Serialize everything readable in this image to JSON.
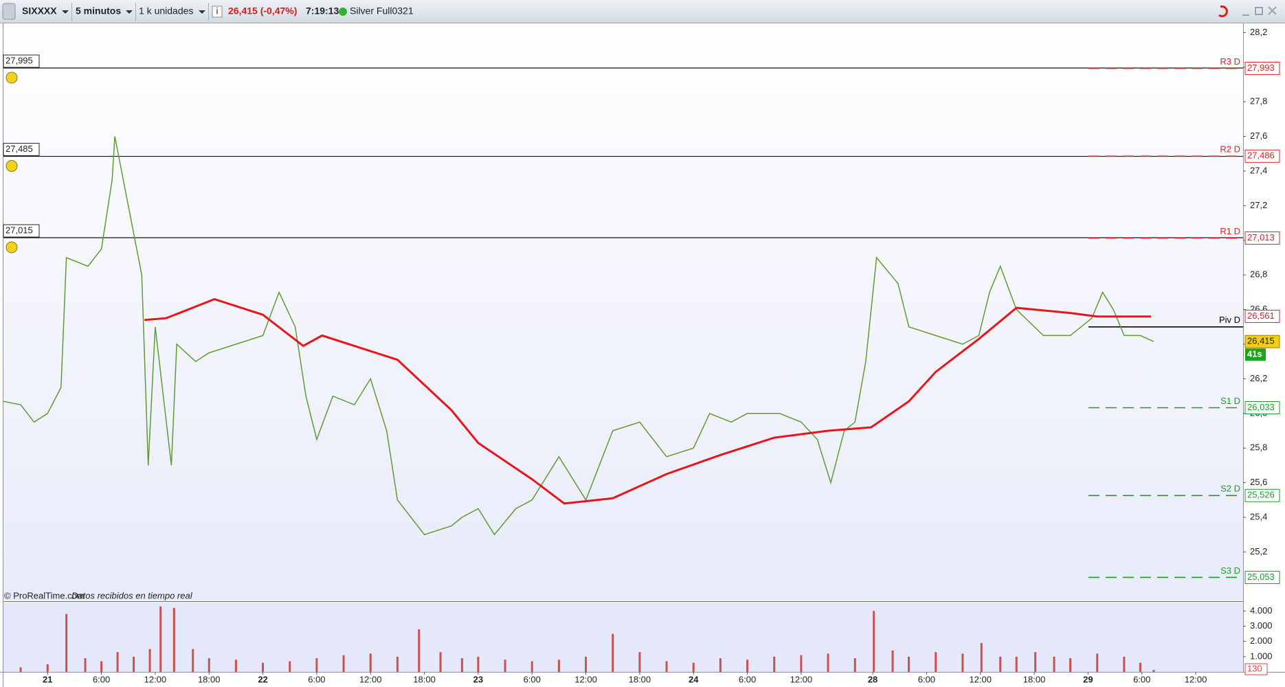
{
  "toolbar": {
    "symbol": "SIXXXX",
    "period": "5 minutos",
    "units": "1 k unidades",
    "quote": "26,415 (-0,47%)",
    "time": "7:19:13",
    "feed": "Silver Full0321"
  },
  "footer": {
    "source": "© ProRealTime.com",
    "status": "Datos recibidos en tiempo real"
  },
  "chart_data": [
    {
      "type": "line",
      "xlim": [
        -0.82,
        22.21
      ],
      "ylim": [
        24.92,
        28.257
      ],
      "xticks": [
        {
          "value": 0,
          "label": "21"
        },
        {
          "value": 1,
          "label": "6:00"
        },
        {
          "value": 2,
          "label": "12:00"
        },
        {
          "value": 3,
          "label": "18:00"
        },
        {
          "value": 4,
          "label": "22"
        },
        {
          "value": 5,
          "label": "6:00"
        },
        {
          "value": 6,
          "label": "12:00"
        },
        {
          "value": 7,
          "label": "18:00"
        },
        {
          "value": 8,
          "label": "23"
        },
        {
          "value": 9,
          "label": "6:00"
        },
        {
          "value": 10,
          "label": "12:00"
        },
        {
          "value": 11,
          "label": "18:00"
        },
        {
          "value": 12,
          "label": "24"
        },
        {
          "value": 13,
          "label": "6:00"
        },
        {
          "value": 14,
          "label": "12:00"
        },
        {
          "value": 15.33,
          "label": "28"
        },
        {
          "value": 16.33,
          "label": "6:00"
        },
        {
          "value": 17.33,
          "label": "12:00"
        },
        {
          "value": 18.33,
          "label": "18:00"
        },
        {
          "value": 19.33,
          "label": "29"
        },
        {
          "value": 20.33,
          "label": "6:00"
        },
        {
          "value": 21.33,
          "label": "12:00"
        }
      ],
      "yticks": [
        {
          "value": 25.2,
          "label": "25,2"
        },
        {
          "value": 25.4,
          "label": "25,4"
        },
        {
          "value": 25.6,
          "label": "25,6"
        },
        {
          "value": 25.8,
          "label": "25,8"
        },
        {
          "value": 26.0,
          "label": "26,0"
        },
        {
          "value": 26.2,
          "label": "26,2"
        },
        {
          "value": 26.4,
          "label": "26,4"
        },
        {
          "value": 26.6,
          "label": "26,6"
        },
        {
          "value": 26.8,
          "label": "26,8"
        },
        {
          "value": 27.0,
          "label": "27,0"
        },
        {
          "value": 27.2,
          "label": "27,2"
        },
        {
          "value": 27.4,
          "label": "27,4"
        },
        {
          "value": 27.6,
          "label": "27,6"
        },
        {
          "value": 27.8,
          "label": "27,8"
        },
        {
          "value": 28.0,
          "label": "28,0"
        },
        {
          "value": 28.2,
          "label": "28,2"
        }
      ],
      "series": [
        {
          "color": "#5f9a35",
          "x": [
            -0.82,
            -0.5,
            -0.25,
            0,
            0.25,
            0.35,
            0.75,
            1,
            1.2,
            1.25,
            1.5,
            1.75,
            1.87,
            2,
            2.3,
            2.4,
            2.75,
            3,
            3.5,
            4,
            4.3,
            4.6,
            4.8,
            5,
            5.3,
            5.7,
            6,
            6.3,
            6.5,
            7,
            7.5,
            7.7,
            8,
            8.3,
            8.7,
            9,
            9.5,
            10,
            10.5,
            11,
            11.5,
            12,
            12.3,
            12.7,
            13,
            13.6,
            14,
            14.3,
            14.55,
            14.8,
            15,
            15.2,
            15.4,
            15.8,
            16,
            16.5,
            17,
            17.3,
            17.5,
            17.7,
            18,
            18.5,
            19,
            19.4,
            19.6,
            19.8,
            20,
            20.3,
            20.55
          ],
          "values": [
            26.07,
            26.05,
            25.95,
            26.0,
            26.15,
            26.9,
            26.85,
            26.95,
            27.35,
            27.6,
            27.2,
            26.8,
            25.7,
            26.5,
            25.7,
            26.4,
            26.3,
            26.35,
            26.4,
            26.45,
            26.7,
            26.5,
            26.1,
            25.85,
            26.1,
            26.05,
            26.2,
            25.9,
            25.5,
            25.3,
            25.35,
            25.4,
            25.45,
            25.3,
            25.45,
            25.5,
            25.75,
            25.5,
            25.9,
            25.95,
            25.75,
            25.8,
            26.0,
            25.95,
            26.0,
            26.0,
            25.95,
            25.85,
            25.6,
            25.9,
            25.95,
            26.3,
            26.9,
            26.75,
            26.5,
            26.45,
            26.4,
            26.45,
            26.7,
            26.85,
            26.6,
            26.45,
            26.45,
            26.55,
            26.7,
            26.6,
            26.45,
            26.45,
            26.415
          ],
          "last": {
            "value": 26.415,
            "label": "26,415"
          }
        },
        {
          "color": "#e8141a",
          "x": [
            1.8,
            2.2,
            3.1,
            4.0,
            4.75,
            5.1,
            6.5,
            7.5,
            8.0,
            9.0,
            9.6,
            10.5,
            11.5,
            12.5,
            13.5,
            14.5,
            15.3,
            16.0,
            16.5,
            17.3,
            18.0,
            19.0,
            19.5,
            20.5
          ],
          "values": [
            26.54,
            26.55,
            26.66,
            26.57,
            26.39,
            26.45,
            26.31,
            26.02,
            25.83,
            25.62,
            25.48,
            25.51,
            25.65,
            25.76,
            25.86,
            25.9,
            25.92,
            26.07,
            26.24,
            26.43,
            26.61,
            26.58,
            26.56,
            26.56
          ],
          "last": {
            "value": 26.561,
            "label": "26,561"
          }
        }
      ],
      "countdown": "41s",
      "alerts": [
        {
          "value": 27.995,
          "label": "27,995"
        },
        {
          "value": 27.485,
          "label": "27,485"
        },
        {
          "value": 27.015,
          "label": "27,015"
        }
      ],
      "levels": [
        {
          "name": "R3 D",
          "value": 27.993,
          "label": "27,993",
          "color": "#e0202a"
        },
        {
          "name": "R2 D",
          "value": 27.486,
          "label": "27,486",
          "color": "#e0202a"
        },
        {
          "name": "R1 D",
          "value": 27.013,
          "label": "27,013",
          "color": "#e0202a"
        },
        {
          "name": "Piv D",
          "value": 26.5,
          "color": "#000000"
        },
        {
          "name": "S1 D",
          "value": 26.033,
          "label": "26,033",
          "color": "#1f9a2a"
        },
        {
          "name": "S2 D",
          "value": 25.526,
          "label": "25,526",
          "color": "#1f9a2a"
        },
        {
          "name": "S3 D",
          "value": 25.053,
          "label": "25,053",
          "color": "#1f9a2a"
        }
      ]
    },
    {
      "type": "bar",
      "color": "#c9524f",
      "ylim": [
        0,
        4556
      ],
      "yticks": [
        {
          "value": 1000,
          "label": "1.000"
        },
        {
          "value": 2000,
          "label": "2.000"
        },
        {
          "value": 3000,
          "label": "3.000"
        },
        {
          "value": 4000,
          "label": "4.000"
        }
      ],
      "x": [
        -0.5,
        0,
        0.35,
        0.7,
        1,
        1.3,
        1.6,
        1.9,
        2.1,
        2.35,
        2.7,
        3,
        3.5,
        4,
        4.5,
        5,
        5.5,
        6,
        6.5,
        6.9,
        7.3,
        7.7,
        8,
        8.5,
        9,
        9.5,
        10,
        10.5,
        11,
        11.5,
        12,
        12.5,
        13,
        13.5,
        14,
        14.5,
        15,
        15.35,
        15.7,
        16,
        16.5,
        17,
        17.35,
        17.7,
        18,
        18.35,
        18.7,
        19,
        19.5,
        20,
        20.3,
        20.55
      ],
      "values": [
        300,
        500,
        3800,
        900,
        700,
        1300,
        1000,
        1500,
        4300,
        4200,
        1500,
        900,
        800,
        600,
        700,
        900,
        1100,
        1200,
        1000,
        2800,
        1300,
        900,
        1000,
        800,
        700,
        800,
        1000,
        2500,
        1300,
        700,
        600,
        900,
        800,
        1000,
        1100,
        1200,
        900,
        4000,
        1400,
        1000,
        1300,
        1200,
        1900,
        1000,
        1000,
        1300,
        1000,
        900,
        1200,
        1000,
        600,
        130
      ],
      "last": {
        "value": 130,
        "label": "130"
      }
    }
  ]
}
